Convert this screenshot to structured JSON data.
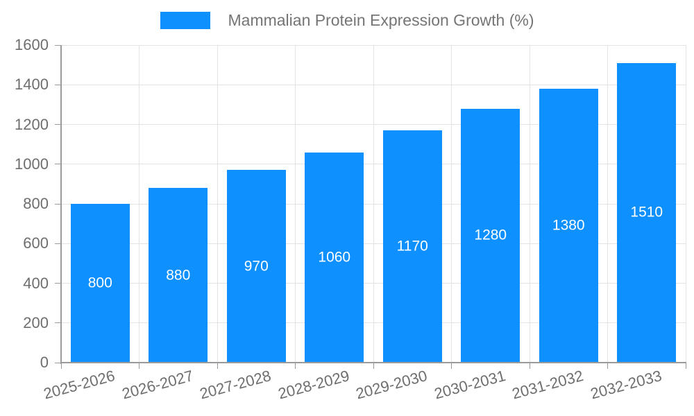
{
  "legend": {
    "label": "Mammalian Protein Expression Growth (%)"
  },
  "chart_data": {
    "type": "bar",
    "title": "Mammalian Protein Expression Growth (%)",
    "categories": [
      "2025-2026",
      "2026-2027",
      "2027-2028",
      "2028-2029",
      "2029-2030",
      "2030-2031",
      "2031-2032",
      "2032-2033"
    ],
    "values": [
      800,
      880,
      970,
      1060,
      1170,
      1280,
      1380,
      1510
    ],
    "bar_labels": [
      "800",
      "880",
      "970",
      "1060",
      "1170",
      "1280",
      "1380",
      "1510"
    ],
    "xlabel": "",
    "ylabel": "",
    "ylim": [
      0,
      1600
    ],
    "yticks": [
      0,
      200,
      400,
      600,
      800,
      1000,
      1200,
      1400,
      1600
    ],
    "grid": "horizontal-and-vertical",
    "legend_position": "top-center",
    "colors": {
      "bar": "#0e90ff",
      "bar_label_text": "#ffffff",
      "grid": "#e3e3e3",
      "axis": "#9a9a9a",
      "tick_text": "#6e6e6e",
      "legend_text": "#757575",
      "background": "#ffffff"
    }
  }
}
